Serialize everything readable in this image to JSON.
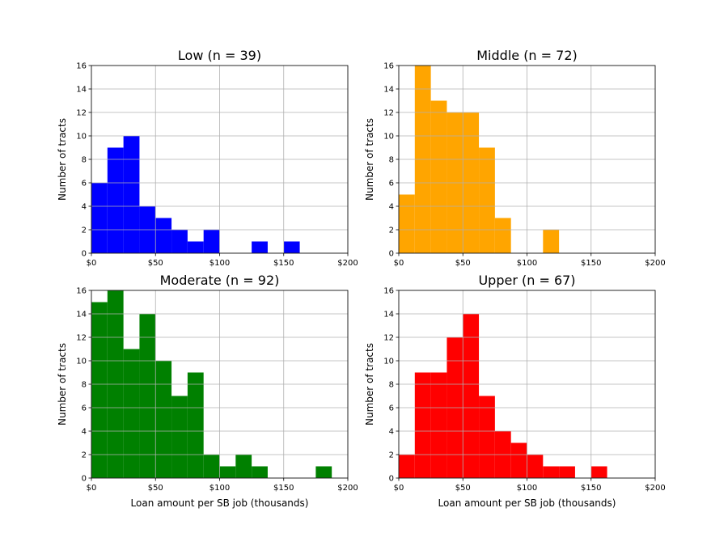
{
  "chart_data": [
    {
      "type": "histogram",
      "title": "Low (n = 39)",
      "xlabel": "",
      "ylabel": "Number of tracts",
      "color": "#0000ff",
      "xlim": [
        0,
        200
      ],
      "ylim": [
        0,
        16
      ],
      "xticks": [
        "$0",
        "$50",
        "$100",
        "$150",
        "$200"
      ],
      "yticks": [
        "0",
        "2",
        "4",
        "6",
        "8",
        "10",
        "12",
        "14",
        "16"
      ],
      "grid": true,
      "bin_width": 12.5,
      "values": [
        6,
        9,
        10,
        4,
        3,
        2,
        1,
        2,
        0,
        0,
        1,
        0,
        1,
        0,
        0,
        0
      ]
    },
    {
      "type": "histogram",
      "title": "Middle (n = 72)",
      "xlabel": "",
      "ylabel": "Number of tracts",
      "color": "#ffa500",
      "xlim": [
        0,
        200
      ],
      "ylim": [
        0,
        16
      ],
      "xticks": [
        "$0",
        "$50",
        "$100",
        "$150",
        "$200"
      ],
      "yticks": [
        "0",
        "2",
        "4",
        "6",
        "8",
        "10",
        "12",
        "14",
        "16"
      ],
      "grid": true,
      "bin_width": 12.5,
      "values": [
        5,
        16,
        13,
        12,
        12,
        9,
        3,
        0,
        0,
        2,
        0,
        0,
        0,
        0,
        0,
        0
      ]
    },
    {
      "type": "histogram",
      "title": "Moderate (n = 92)",
      "xlabel": "Loan amount per SB job (thousands)",
      "ylabel": "Number of tracts",
      "color": "#008000",
      "xlim": [
        0,
        200
      ],
      "ylim": [
        0,
        16
      ],
      "xticks": [
        "$0",
        "$50",
        "$100",
        "$150",
        "$200"
      ],
      "yticks": [
        "0",
        "2",
        "4",
        "6",
        "8",
        "10",
        "12",
        "14",
        "16"
      ],
      "grid": true,
      "bin_width": 12.5,
      "values": [
        15,
        16,
        11,
        14,
        10,
        7,
        9,
        2,
        1,
        2,
        1,
        0,
        0,
        0,
        1,
        0
      ]
    },
    {
      "type": "histogram",
      "title": "Upper (n = 67)",
      "xlabel": "Loan amount per SB job (thousands)",
      "ylabel": "Number of tracts",
      "color": "#ff0000",
      "xlim": [
        0,
        200
      ],
      "ylim": [
        0,
        16
      ],
      "xticks": [
        "$0",
        "$50",
        "$100",
        "$150",
        "$200"
      ],
      "yticks": [
        "0",
        "2",
        "4",
        "6",
        "8",
        "10",
        "12",
        "14",
        "16"
      ],
      "grid": true,
      "bin_width": 12.5,
      "values": [
        2,
        9,
        9,
        12,
        14,
        7,
        4,
        3,
        2,
        1,
        1,
        0,
        1,
        0,
        0,
        0
      ]
    }
  ]
}
